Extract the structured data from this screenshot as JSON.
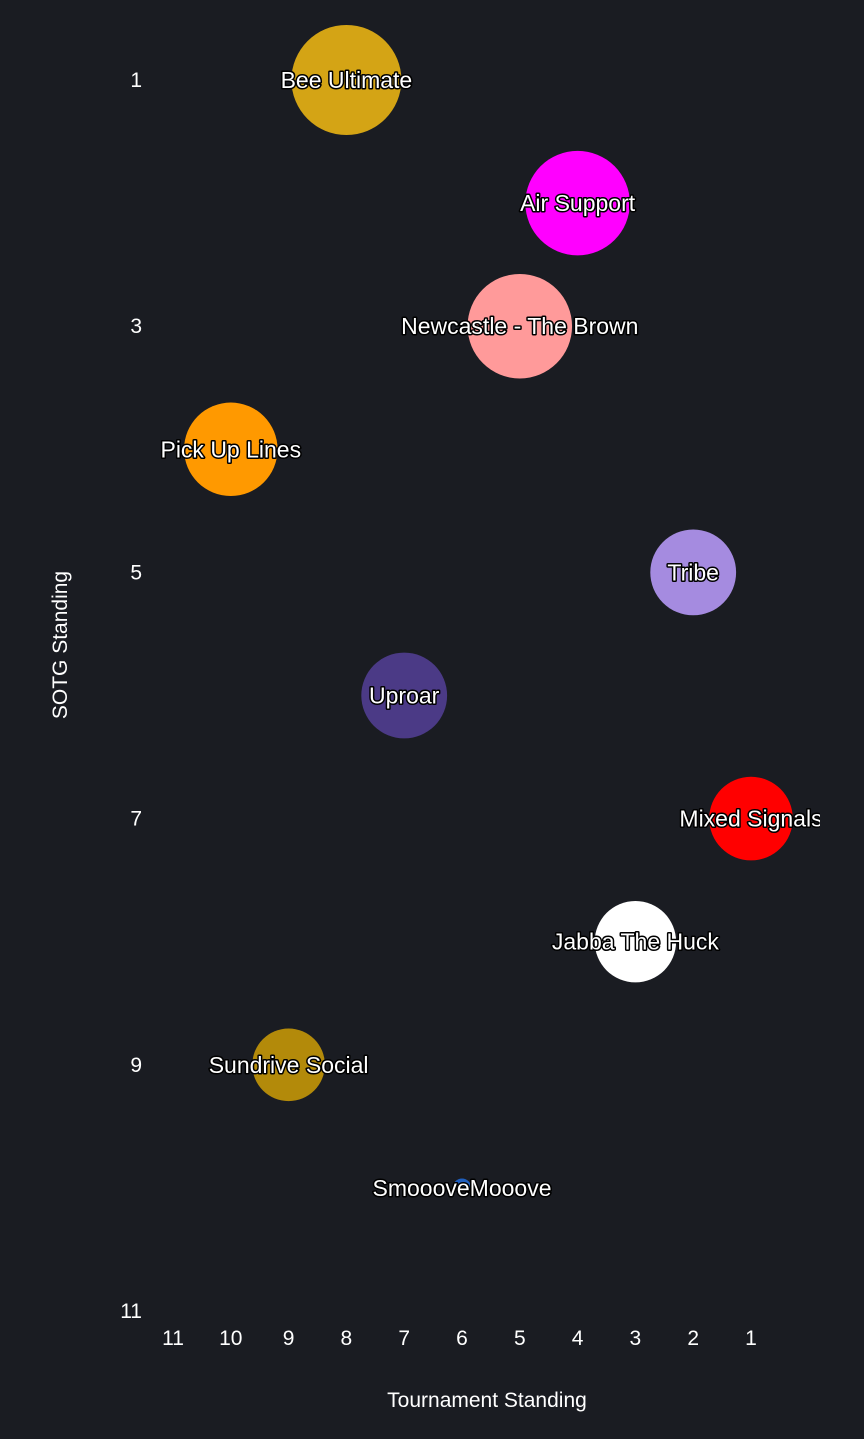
{
  "chart_data": {
    "type": "scatter",
    "xlabel": "Tournament Standing",
    "ylabel": "SOTG Standing",
    "x_ticks": [
      11,
      10,
      9,
      8,
      7,
      6,
      5,
      4,
      3,
      2,
      1
    ],
    "y_ticks": [
      1,
      3,
      5,
      7,
      9,
      11
    ],
    "xlim": [
      11,
      0
    ],
    "ylim": [
      1,
      11
    ],
    "x_reversed": true,
    "y_reversed": true,
    "grid": false,
    "background": "#1a1c22",
    "points": [
      {
        "label": "Bee Ultimate",
        "x": 8,
        "y": 1,
        "color": "#d4a415",
        "size": 1.0
      },
      {
        "label": "Air Support",
        "x": 4,
        "y": 2,
        "color": "#ff00ff",
        "size": 0.95
      },
      {
        "label": "Newcastle - The Brown",
        "x": 5,
        "y": 3,
        "color": "#ff9a9a",
        "size": 0.95
      },
      {
        "label": "Pick Up Lines",
        "x": 10,
        "y": 4,
        "color": "#ff9900",
        "size": 0.85
      },
      {
        "label": "Tribe",
        "x": 2,
        "y": 5,
        "color": "#a58be0",
        "size": 0.78
      },
      {
        "label": "Uproar",
        "x": 7,
        "y": 6,
        "color": "#4b3a86",
        "size": 0.78
      },
      {
        "label": "Mixed Signals",
        "x": 1,
        "y": 7,
        "color": "#ff0000",
        "size": 0.76
      },
      {
        "label": "Jabba The Huck",
        "x": 3,
        "y": 8,
        "color": "#ffffff",
        "size": 0.74
      },
      {
        "label": "Sundrive Social",
        "x": 9,
        "y": 9,
        "color": "#b38a0a",
        "size": 0.66
      },
      {
        "label": "SmoooveMooove",
        "x": 6,
        "y": 10,
        "color": "#1f5fbf",
        "size": 0.17
      }
    ]
  }
}
